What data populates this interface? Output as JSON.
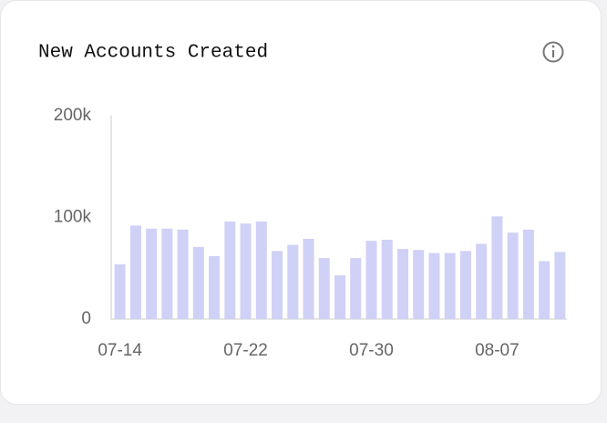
{
  "chart_data": {
    "type": "bar",
    "title": "New Accounts Created",
    "categories": [
      "07-14",
      null,
      null,
      null,
      null,
      null,
      null,
      null,
      "07-22",
      null,
      null,
      null,
      null,
      null,
      null,
      null,
      "07-30",
      null,
      null,
      null,
      null,
      null,
      null,
      null,
      "08-07",
      null,
      null,
      null,
      null
    ],
    "values": [
      54000,
      92000,
      89000,
      89000,
      88000,
      71000,
      62000,
      96000,
      94000,
      96000,
      67000,
      73000,
      79000,
      60000,
      43000,
      60000,
      77000,
      78000,
      69000,
      68000,
      65000,
      65000,
      67000,
      74000,
      101000,
      85000,
      88000,
      57000,
      66000
    ],
    "color": "#d0d1f6",
    "ylim": [
      0,
      200000
    ],
    "yticks": [
      0,
      {
        "value": 100000,
        "label": "100k"
      },
      {
        "value": 200000,
        "label": "200k"
      }
    ],
    "grid": false
  }
}
